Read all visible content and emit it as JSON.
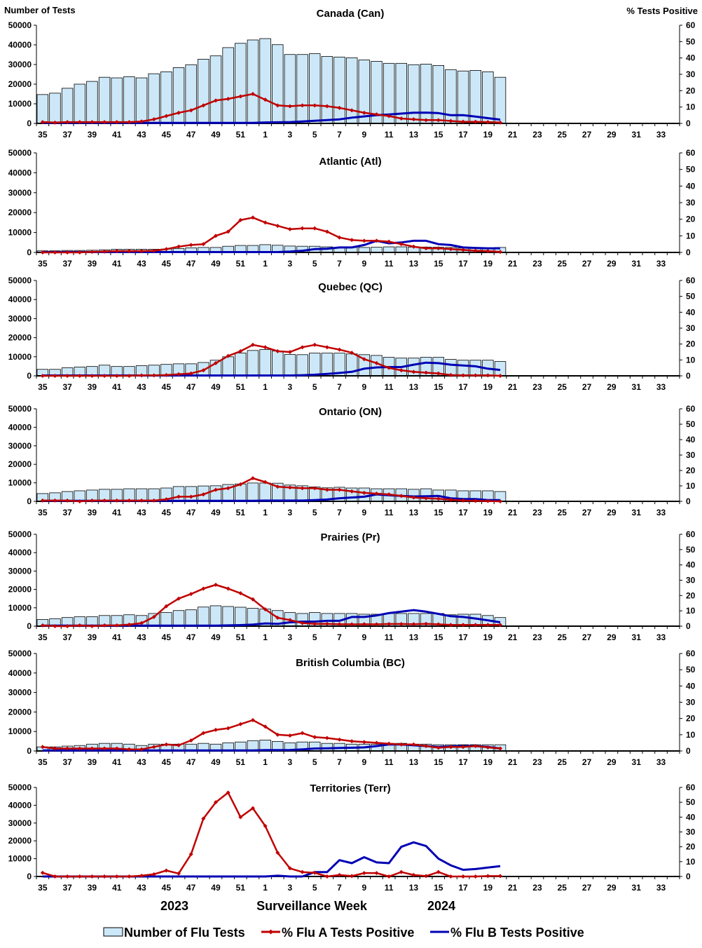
{
  "header": {
    "left_axis_title": "Number of Tests",
    "right_axis_title": "% Tests Positive"
  },
  "footer": {
    "year_left": "2023",
    "xlabel": "Surveillance Week",
    "year_right": "2024"
  },
  "legend": {
    "position": "bottom",
    "items": [
      {
        "label": "Number of Flu Tests",
        "color": "#cce8f8",
        "kind": "bar"
      },
      {
        "label": "% Flu A Tests Positive",
        "color": "#c00000",
        "kind": "line-marker"
      },
      {
        "label": "% Flu B Tests Positive",
        "color": "#0000b4",
        "kind": "line"
      }
    ]
  },
  "axes": {
    "x_categories": [
      35,
      36,
      37,
      38,
      39,
      40,
      41,
      42,
      43,
      44,
      45,
      46,
      47,
      48,
      49,
      50,
      51,
      52,
      1,
      2,
      3,
      4,
      5,
      6,
      7,
      8,
      9,
      10,
      11,
      12,
      13,
      14,
      15,
      16,
      17,
      18,
      19,
      20,
      21,
      22,
      23,
      24,
      25,
      26,
      27,
      28,
      29,
      30,
      31,
      32,
      33,
      34
    ],
    "x_tick_labels": [
      "35",
      "37",
      "39",
      "41",
      "43",
      "45",
      "47",
      "49",
      "51",
      "1",
      "3",
      "5",
      "7",
      "9",
      "11",
      "13",
      "15",
      "17",
      "19",
      "21",
      "23",
      "25",
      "27",
      "29",
      "31",
      "33"
    ],
    "y_left_ticks": [
      "0",
      "10000",
      "20000",
      "30000",
      "40000",
      "50000"
    ],
    "y_right_ticks": [
      "0",
      "10",
      "20",
      "30",
      "40",
      "50",
      "60"
    ],
    "ylim_left": [
      0,
      50000
    ],
    "ylim_right": [
      0,
      60
    ]
  },
  "chart_data": [
    {
      "type": "bar+line",
      "title": "Canada (Can)",
      "series": [
        {
          "name": "Number of Flu Tests",
          "axis": "left",
          "values": [
            14700,
            15400,
            17900,
            20000,
            21400,
            23500,
            23200,
            23800,
            23200,
            25300,
            26300,
            28400,
            29900,
            32700,
            34400,
            38600,
            40800,
            42500,
            43200,
            40100,
            35100,
            35100,
            35500,
            34100,
            33800,
            33400,
            32300,
            31600,
            30600,
            30600,
            29900,
            30200,
            29500,
            27400,
            26700,
            27000,
            26300,
            23500
          ]
        },
        {
          "name": "% Flu A Tests Positive",
          "axis": "right",
          "values": [
            0.8,
            0.5,
            0.8,
            0.8,
            0.8,
            0.8,
            0.8,
            0.8,
            1.2,
            2.5,
            4.5,
            6.5,
            8,
            11,
            14,
            15,
            16.5,
            18,
            14.5,
            11,
            10.5,
            11,
            11,
            10.5,
            9.5,
            8,
            6.5,
            5.5,
            4.5,
            3,
            2.5,
            2,
            2,
            1.5,
            1,
            1,
            0.8,
            0.5
          ]
        },
        {
          "name": "% Flu B Tests Positive",
          "axis": "right",
          "values": [
            0.3,
            0.3,
            0.3,
            0.3,
            0.3,
            0.3,
            0.3,
            0.3,
            0.3,
            0.3,
            0.3,
            0.3,
            0.3,
            0.3,
            0.3,
            0.3,
            0.3,
            0.3,
            0.6,
            0.7,
            0.8,
            1.2,
            1.6,
            2,
            2.5,
            3.5,
            4.3,
            5,
            5.5,
            6,
            6.5,
            6.6,
            6.3,
            5,
            5,
            4.2,
            3.2,
            2.3
          ]
        }
      ]
    },
    {
      "type": "bar+line",
      "title": "Atlantic (Atl)",
      "series": [
        {
          "name": "Number of Flu Tests",
          "axis": "left",
          "values": [
            800,
            800,
            1000,
            1000,
            1100,
            1300,
            1600,
            1600,
            1600,
            1600,
            1700,
            2000,
            2300,
            2500,
            2500,
            3100,
            3500,
            3500,
            3900,
            3600,
            3200,
            3100,
            3100,
            2800,
            2500,
            2500,
            2500,
            2600,
            2800,
            2800,
            2700,
            2700,
            2600,
            2500,
            2200,
            2100,
            2100,
            2500
          ]
        },
        {
          "name": "% Flu A Tests Positive",
          "axis": "right",
          "values": [
            0,
            0,
            0,
            0,
            0.3,
            0.5,
            0.8,
            0.8,
            0.8,
            1,
            2,
            3.5,
            4.5,
            5,
            10,
            12.5,
            19.5,
            21,
            18,
            16,
            14,
            14.5,
            14.5,
            12.5,
            9,
            7.5,
            7,
            7,
            6.5,
            5,
            3.5,
            2.5,
            2.5,
            2,
            1.5,
            1,
            0.8,
            0.3
          ]
        },
        {
          "name": "% Flu B Tests Positive",
          "axis": "right",
          "values": [
            0.2,
            0.2,
            0.2,
            0.2,
            0.2,
            0.2,
            0.2,
            0.2,
            0.2,
            0.2,
            0.2,
            0.2,
            0.2,
            0.2,
            0.2,
            0.2,
            0.2,
            0.2,
            0.2,
            0.2,
            0.5,
            1,
            2,
            2.2,
            3,
            3,
            4.5,
            7,
            5.5,
            6,
            7,
            7,
            5,
            4.5,
            3,
            2.7,
            2.5,
            2.5
          ]
        }
      ]
    },
    {
      "type": "bar+line",
      "title": "Quebec (QC)",
      "series": [
        {
          "name": "Number of Flu Tests",
          "axis": "left",
          "values": [
            3400,
            3400,
            4200,
            4600,
            4900,
            5600,
            4900,
            4900,
            5300,
            5600,
            6000,
            6300,
            6300,
            7000,
            8200,
            10000,
            12000,
            13300,
            13800,
            13000,
            11200,
            11100,
            11900,
            11900,
            11900,
            11500,
            11100,
            10700,
            9700,
            9300,
            9300,
            9700,
            9700,
            8600,
            8200,
            8200,
            8200,
            7500
          ]
        },
        {
          "name": "% Flu A Tests Positive",
          "axis": "right",
          "values": [
            0,
            0,
            0,
            0,
            0,
            0,
            0,
            0,
            0.3,
            0.3,
            0.5,
            1,
            1.5,
            3.5,
            8,
            12.5,
            15.5,
            19.5,
            18,
            15.5,
            15,
            18,
            19.5,
            18,
            16.5,
            14.5,
            10.5,
            8,
            5,
            3.5,
            2.5,
            2,
            1.5,
            0.5,
            0.3,
            0.3,
            0.3,
            0
          ]
        },
        {
          "name": "% Flu B Tests Positive",
          "axis": "right",
          "values": [
            0.2,
            0.2,
            0.2,
            0.2,
            0.2,
            0.2,
            0.2,
            0.2,
            0.2,
            0.2,
            0.2,
            0.2,
            0.2,
            0.2,
            0.2,
            0.2,
            0.2,
            0.2,
            0.2,
            0.2,
            0.2,
            0.4,
            0.7,
            1.2,
            1.8,
            2.5,
            4.5,
            5.3,
            5.5,
            5.5,
            7,
            8.3,
            8,
            7,
            6.5,
            6,
            4.5,
            3.7
          ]
        }
      ]
    },
    {
      "type": "bar+line",
      "title": "Ontario (ON)",
      "series": [
        {
          "name": "Number of Flu Tests",
          "axis": "left",
          "values": [
            4200,
            4600,
            5300,
            5700,
            6100,
            6500,
            6500,
            6800,
            6800,
            6800,
            7200,
            8000,
            8000,
            8300,
            8400,
            9100,
            9400,
            9900,
            9900,
            9800,
            8800,
            8400,
            7800,
            7300,
            7600,
            7200,
            7200,
            6800,
            6800,
            6800,
            6500,
            6800,
            6100,
            6100,
            5700,
            5700,
            5700,
            5300
          ]
        },
        {
          "name": "% Flu A Tests Positive",
          "axis": "right",
          "values": [
            0.5,
            0.5,
            0.5,
            0,
            0.5,
            0.5,
            0.5,
            0.5,
            0.5,
            0.5,
            1.3,
            3,
            3,
            4.5,
            7.5,
            8.5,
            11,
            15,
            12.5,
            9.5,
            9,
            8.5,
            8.5,
            7.5,
            7.5,
            6.5,
            5.5,
            5,
            4.5,
            3.5,
            2.5,
            2,
            1.7,
            1,
            0.5,
            0.3,
            0.2,
            0
          ]
        },
        {
          "name": "% Flu B Tests Positive",
          "axis": "right",
          "values": [
            0.3,
            0.3,
            0.3,
            0.3,
            0.3,
            0.3,
            0.3,
            0.3,
            0.3,
            0.3,
            0.3,
            0.3,
            0.3,
            0.3,
            0.3,
            0.3,
            0.3,
            0.3,
            0.5,
            0.5,
            0.5,
            0.5,
            0.8,
            1.2,
            2,
            2.5,
            3,
            4.5,
            4,
            3.5,
            3.2,
            3.3,
            3.5,
            2,
            1.5,
            1.5,
            0.8,
            0.8
          ]
        }
      ]
    },
    {
      "type": "bar+line",
      "title": "Prairies (Pr)",
      "series": [
        {
          "name": "Number of Flu Tests",
          "axis": "left",
          "values": [
            3600,
            4000,
            4700,
            5100,
            5100,
            5800,
            5800,
            6200,
            5800,
            6900,
            7400,
            8500,
            8900,
            10400,
            11100,
            10700,
            10300,
            9700,
            9300,
            8500,
            7400,
            6900,
            7400,
            6900,
            6900,
            6900,
            6500,
            6500,
            6900,
            6900,
            6900,
            6900,
            6900,
            6200,
            6500,
            6500,
            5800,
            4700
          ]
        },
        {
          "name": "% Flu A Tests Positive",
          "axis": "right",
          "values": [
            0.5,
            0,
            0,
            0.5,
            0,
            0.5,
            0.5,
            1,
            2,
            6,
            13,
            18,
            21,
            24.5,
            27,
            24.5,
            21.5,
            17.5,
            11,
            5.5,
            4,
            2,
            1.5,
            1.5,
            1.3,
            1.2,
            1.3,
            1.2,
            1.4,
            1.4,
            1.3,
            1.5,
            1.2,
            0.8,
            0.8,
            0.8,
            0.8,
            0.8
          ]
        },
        {
          "name": "% Flu B Tests Positive",
          "axis": "right",
          "values": [
            0.3,
            0.3,
            0.3,
            0.3,
            0.3,
            0.3,
            0.3,
            0.3,
            0.3,
            0.3,
            0.3,
            0.3,
            0.3,
            0.3,
            0.3,
            0.5,
            0.7,
            1,
            1.8,
            1.5,
            2.5,
            3,
            3,
            3.5,
            3.5,
            6,
            6,
            7,
            8.5,
            9.5,
            10.5,
            9.5,
            8,
            6.5,
            6,
            5,
            3.8,
            2.5
          ]
        }
      ]
    },
    {
      "type": "bar+line",
      "title": "British Columbia (BC)",
      "series": [
        {
          "name": "Number of Flu Tests",
          "axis": "left",
          "values": [
            2100,
            2100,
            2500,
            2800,
            3500,
            3900,
            3900,
            3500,
            2800,
            3500,
            3500,
            3500,
            3500,
            3900,
            3500,
            4200,
            4600,
            5300,
            5600,
            4900,
            4200,
            4600,
            4600,
            3900,
            3900,
            3500,
            3500,
            3500,
            3900,
            3900,
            3500,
            3500,
            3200,
            3200,
            3200,
            3200,
            3200,
            3200
          ]
        },
        {
          "name": "% Flu A Tests Positive",
          "axis": "right",
          "values": [
            2.5,
            1.5,
            1.5,
            1.5,
            1.5,
            1.5,
            1.5,
            1,
            1,
            2.5,
            4,
            3.5,
            6.5,
            11,
            13,
            14,
            16.5,
            19,
            15,
            10,
            9.5,
            11,
            8.5,
            8,
            7,
            6,
            5.5,
            5,
            4.5,
            4,
            4,
            3,
            2,
            2.5,
            2.5,
            3,
            2.2,
            1.5
          ]
        },
        {
          "name": "% Flu B Tests Positive",
          "axis": "right",
          "values": [
            0.3,
            0.3,
            0.3,
            0.3,
            0.3,
            0.3,
            0.3,
            0.3,
            0.3,
            0.3,
            0.3,
            0.3,
            0.3,
            0.3,
            0.3,
            0.3,
            0.3,
            0.3,
            0.5,
            0.5,
            0.6,
            1,
            1.5,
            1.6,
            1.8,
            2,
            2.2,
            3,
            4,
            4,
            3.5,
            3,
            2.5,
            2.8,
            3,
            3,
            2.5,
            1.5
          ]
        }
      ]
    },
    {
      "type": "bar+line",
      "title": "Territories (Terr)",
      "series": [
        {
          "name": "Number of Flu Tests",
          "axis": "left",
          "values": [
            100,
            100,
            100,
            100,
            100,
            100,
            100,
            100,
            100,
            100,
            100,
            100,
            100,
            100,
            100,
            100,
            100,
            100,
            100,
            100,
            100,
            100,
            100,
            100,
            100,
            100,
            100,
            100,
            100,
            100,
            100,
            100,
            100,
            100,
            100,
            100,
            100,
            100
          ]
        },
        {
          "name": "% Flu A Tests Positive",
          "axis": "right",
          "values": [
            2.5,
            0,
            0,
            0,
            0,
            0,
            0,
            0,
            0.5,
            1.5,
            4,
            2,
            15,
            39,
            50,
            56.5,
            40,
            46,
            34,
            16,
            5.5,
            3,
            2.5,
            0,
            1,
            0.3,
            2.3,
            2.3,
            0,
            3,
            1,
            0.3,
            3,
            0,
            0,
            0,
            0.3,
            0.3
          ]
        },
        {
          "name": "% Flu B Tests Positive",
          "axis": "right",
          "values": [
            0,
            0,
            0,
            0,
            0,
            0,
            0,
            0,
            0,
            0,
            0,
            0,
            0,
            0,
            0,
            0,
            0,
            0,
            0,
            0.5,
            0,
            0,
            3,
            3,
            11,
            9,
            13,
            9.5,
            9,
            20,
            23,
            20.5,
            12,
            7.5,
            4.5,
            5,
            6,
            7
          ]
        }
      ]
    }
  ]
}
